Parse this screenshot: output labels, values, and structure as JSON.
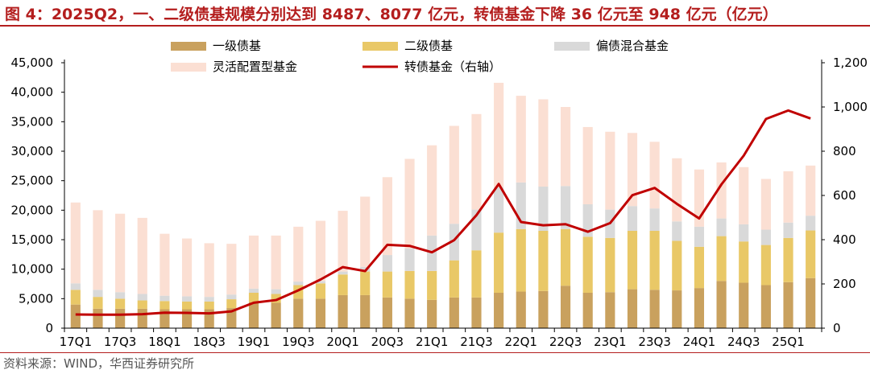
{
  "title": "图 4：2025Q2，一、二级债基规模分别达到 8487、8077 亿元，转债基金下降 36 亿元至 948 亿元（亿元）",
  "source": "资料来源：WIND，华西证券研究所",
  "colors": {
    "title_red": "#b41e1e",
    "yiji": "#c9a15e",
    "erji": "#e9c867",
    "pianzhai": "#d9d9d9",
    "linghuo": "#fbdfd3",
    "zhuanzhai": "#c00000"
  },
  "chart_data": {
    "type": "bar",
    "stacked": true,
    "categories": [
      "17Q1",
      "17Q2",
      "17Q3",
      "17Q4",
      "18Q1",
      "18Q2",
      "18Q3",
      "18Q4",
      "19Q1",
      "19Q2",
      "19Q3",
      "19Q4",
      "20Q1",
      "20Q2",
      "20Q3",
      "20Q4",
      "21Q1",
      "21Q2",
      "21Q3",
      "21Q4",
      "22Q1",
      "22Q2",
      "22Q3",
      "22Q4",
      "23Q1",
      "23Q2",
      "23Q3",
      "23Q4",
      "24Q1",
      "24Q2",
      "24Q3",
      "24Q4",
      "25Q1",
      "25Q2"
    ],
    "tick_labels": [
      "17Q1",
      "17Q3",
      "18Q1",
      "18Q3",
      "19Q1",
      "19Q3",
      "20Q1",
      "20Q3",
      "21Q1",
      "21Q3",
      "22Q1",
      "22Q3",
      "23Q1",
      "23Q3",
      "24Q1",
      "24Q3",
      "25Q1"
    ],
    "series": [
      {
        "name": "一级债基",
        "axis": "left",
        "color": "#c9a15e",
        "values": [
          4000,
          3300,
          3300,
          3300,
          3200,
          3200,
          3200,
          3400,
          4400,
          4300,
          5000,
          5000,
          5600,
          5600,
          5200,
          5000,
          4800,
          5200,
          5200,
          6000,
          6200,
          6300,
          7200,
          6000,
          6100,
          6600,
          6500,
          6400,
          6800,
          8000,
          7700,
          7300,
          7800,
          8487
        ]
      },
      {
        "name": "二级债基",
        "axis": "left",
        "color": "#e9c867",
        "values": [
          2500,
          2000,
          1700,
          1400,
          1400,
          1300,
          1300,
          1500,
          1600,
          1500,
          2300,
          2600,
          3500,
          4000,
          4400,
          4700,
          4900,
          6300,
          8000,
          10200,
          10600,
          10200,
          9600,
          9500,
          9200,
          9900,
          10000,
          8400,
          7000,
          7600,
          7000,
          6800,
          7500,
          8077
        ]
      },
      {
        "name": "偏债混合基金",
        "axis": "left",
        "color": "#d9d9d9",
        "values": [
          1100,
          1200,
          1100,
          1100,
          900,
          900,
          800,
          800,
          700,
          800,
          600,
          400,
          500,
          800,
          2800,
          3800,
          6000,
          6200,
          6900,
          7700,
          7900,
          7500,
          7300,
          5500,
          4800,
          4200,
          3800,
          3300,
          3400,
          3000,
          2900,
          2600,
          2600,
          2500
        ]
      },
      {
        "name": "灵活配置型基金",
        "axis": "left",
        "color": "#fbdfd3",
        "values": [
          13700,
          13500,
          13300,
          12900,
          10500,
          9800,
          9100,
          8600,
          9000,
          9100,
          9300,
          10200,
          10300,
          11900,
          13200,
          15200,
          15300,
          16600,
          16200,
          17700,
          14700,
          14800,
          13400,
          13100,
          13200,
          12400,
          11300,
          10700,
          9700,
          9500,
          9700,
          8600,
          8700,
          8500
        ]
      },
      {
        "name": "转债基金（右轴）",
        "axis": "right",
        "type": "line",
        "color": "#c00000",
        "values": [
          62,
          61,
          61,
          63,
          70,
          69,
          67,
          76,
          115,
          127,
          171,
          220,
          276,
          258,
          377,
          372,
          343,
          398,
          511,
          652,
          480,
          465,
          470,
          436,
          475,
          601,
          634,
          562,
          496,
          650,
          780,
          946,
          984,
          948
        ]
      }
    ],
    "yaxis_left": {
      "min": 0,
      "max": 45000,
      "ticks": [
        "0",
        "5,000",
        "10,000",
        "15,000",
        "20,000",
        "25,000",
        "30,000",
        "35,000",
        "40,000",
        "45,000"
      ]
    },
    "yaxis_right": {
      "min": 0,
      "max": 1200,
      "ticks": [
        "0",
        "200",
        "400",
        "600",
        "800",
        "1,000",
        "1,200"
      ]
    },
    "legend_position": "top",
    "grid": false
  }
}
